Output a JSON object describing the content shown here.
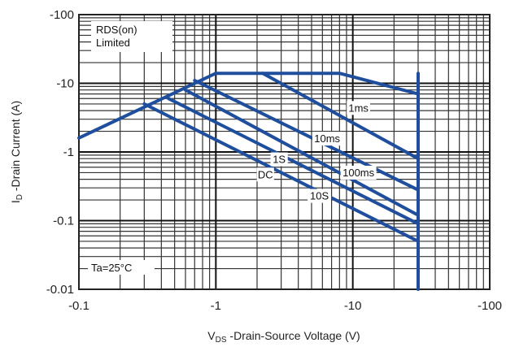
{
  "chart_data": {
    "type": "line",
    "xscale": "log",
    "yscale": "log",
    "xlim": [
      -0.1,
      -100
    ],
    "ylim": [
      -0.01,
      -100
    ],
    "grid": true,
    "x_ticks": [
      "-0.1",
      "-1",
      "-10",
      "-100"
    ],
    "y_ticks": [
      "-100",
      "-10",
      "-1",
      "-0.1",
      "-0.01"
    ],
    "xlabel_main": "V",
    "xlabel_sub": "DS",
    "xlabel_rest": " -Drain-Source Voltage (V)",
    "ylabel_main": "I",
    "ylabel_sub": "D",
    "ylabel_rest": " -Drain Current (A)",
    "annotations": {
      "rds_line1": "RDS(on)",
      "rds_line2": "Limited",
      "temp": "Ta=25°C"
    },
    "line_color": "#1f4e9c",
    "series": [
      {
        "name": "RDS(on) Limited",
        "x": [
          -0.1,
          -1.0
        ],
        "y": [
          -1.6,
          -14
        ]
      },
      {
        "name": "1ms",
        "x": [
          -1.0,
          -8.0,
          -30,
          -30
        ],
        "y": [
          -14,
          -14,
          -7,
          -3.5
        ]
      },
      {
        "name": "10ms",
        "x": [
          -2.2,
          -30
        ],
        "y": [
          -14,
          -0.8
        ]
      },
      {
        "name": "100ms",
        "x": [
          -0.7,
          -30
        ],
        "y": [
          -11,
          -0.28
        ]
      },
      {
        "name": "1S",
        "x": [
          -0.6,
          -30
        ],
        "y": [
          -8,
          -0.12
        ]
      },
      {
        "name": "10S",
        "x": [
          -0.45,
          -30
        ],
        "y": [
          -6,
          -0.09
        ]
      },
      {
        "name": "DC",
        "x": [
          -0.3,
          -30
        ],
        "y": [
          -5,
          -0.05
        ]
      },
      {
        "name": "limit",
        "x": [
          -30,
          -30
        ],
        "y": [
          -14,
          -0.01
        ]
      }
    ],
    "labels": [
      {
        "text": "1ms",
        "x": -11,
        "y": -4.2
      },
      {
        "text": "10ms",
        "x": -6.5,
        "y": -1.5
      },
      {
        "text": "100ms",
        "x": -11,
        "y": -0.48
      },
      {
        "text": "1S",
        "x": -2.9,
        "y": -0.75
      },
      {
        "text": "10S",
        "x": -5.7,
        "y": -0.22
      },
      {
        "text": "DC",
        "x": -2.3,
        "y": -0.45
      }
    ]
  }
}
